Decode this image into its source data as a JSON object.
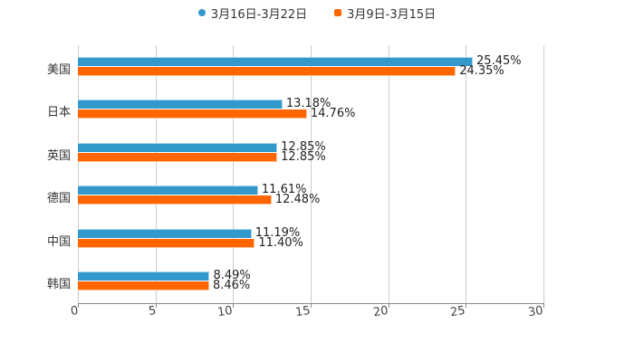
{
  "legend": {
    "items": [
      {
        "label": "3月16日-3月22日",
        "color": "#3399cc",
        "shape": "circle"
      },
      {
        "label": "3月9日-3月15日",
        "color": "#ff6600",
        "shape": "square"
      }
    ]
  },
  "axis": {
    "ticks": [
      "0",
      "5",
      "10",
      "15",
      "20",
      "25",
      "30"
    ]
  },
  "categories": [
    "美国",
    "日本",
    "英国",
    "德国",
    "中国",
    "韩国"
  ],
  "bars": {
    "series_a": [
      "25.45%",
      "13.18%",
      "12.85%",
      "11.61%",
      "11.19%",
      "8.49%"
    ],
    "series_b": [
      "24.35%",
      "14.76%",
      "12.85%",
      "12.48%",
      "11.40%",
      "8.46%"
    ]
  },
  "chart_data": {
    "type": "bar",
    "orientation": "horizontal",
    "title": "",
    "xlabel": "",
    "ylabel": "",
    "categories": [
      "美国",
      "日本",
      "英国",
      "德国",
      "中国",
      "韩国"
    ],
    "series": [
      {
        "name": "3月16日-3月22日",
        "color": "#3399cc",
        "values": [
          25.45,
          13.18,
          12.85,
          11.61,
          11.19,
          8.49
        ]
      },
      {
        "name": "3月9日-3月15日",
        "color": "#ff6600",
        "values": [
          24.35,
          14.76,
          12.85,
          12.48,
          11.4,
          8.46
        ]
      }
    ],
    "xlim": [
      0,
      30
    ],
    "x_ticks": [
      0,
      5,
      10,
      15,
      20,
      25,
      30
    ],
    "value_labels_suffix": "%",
    "grid": "vertical",
    "legend_position": "top"
  }
}
